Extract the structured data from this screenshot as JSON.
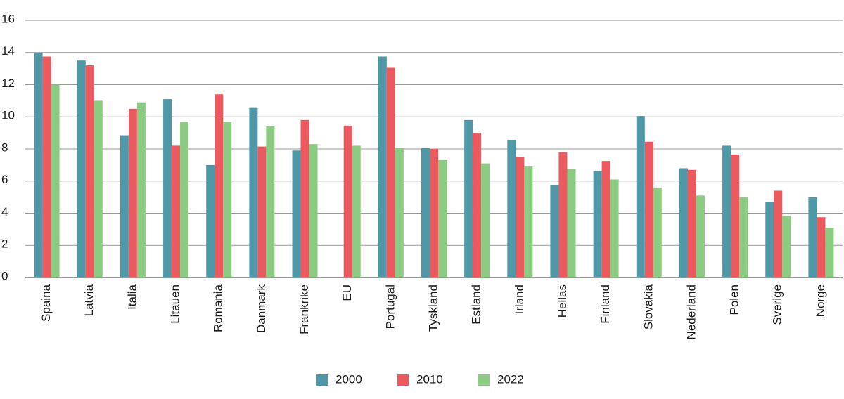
{
  "chart_data": {
    "type": "bar",
    "categories": [
      "Spaina",
      "Latvia",
      "Italia",
      "Litauen",
      "Romania",
      "Danmark",
      "Frankrike",
      "EU",
      "Portugal",
      "Tyskland",
      "Estland",
      "Irland",
      "Hellas",
      "Finland",
      "Slovakia",
      "Nederland",
      "Polen",
      "Sverige",
      "Norge"
    ],
    "series": [
      {
        "name": "2000",
        "color": "#4f98a8",
        "values": [
          14.0,
          13.5,
          8.85,
          11.1,
          7.0,
          10.55,
          7.9,
          null,
          13.75,
          8.05,
          9.8,
          8.55,
          5.75,
          6.6,
          10.05,
          6.8,
          8.2,
          4.7,
          5.0
        ]
      },
      {
        "name": "2010",
        "color": "#ec5a5f",
        "values": [
          13.75,
          13.2,
          10.5,
          8.2,
          11.4,
          8.15,
          9.8,
          9.45,
          13.05,
          8.0,
          9.0,
          7.5,
          7.8,
          7.25,
          8.45,
          6.7,
          7.65,
          5.4,
          3.75
        ]
      },
      {
        "name": "2022",
        "color": "#8ccc82",
        "values": [
          12.0,
          11.0,
          10.9,
          9.7,
          9.7,
          9.4,
          8.3,
          8.2,
          8.05,
          7.3,
          7.1,
          6.9,
          6.75,
          6.1,
          5.6,
          5.1,
          5.0,
          3.85,
          3.1
        ]
      }
    ],
    "ylim": [
      0,
      16
    ],
    "yticks": [
      0,
      2,
      4,
      6,
      8,
      10,
      12,
      14,
      16
    ],
    "grid": true,
    "legend": "bottom"
  }
}
